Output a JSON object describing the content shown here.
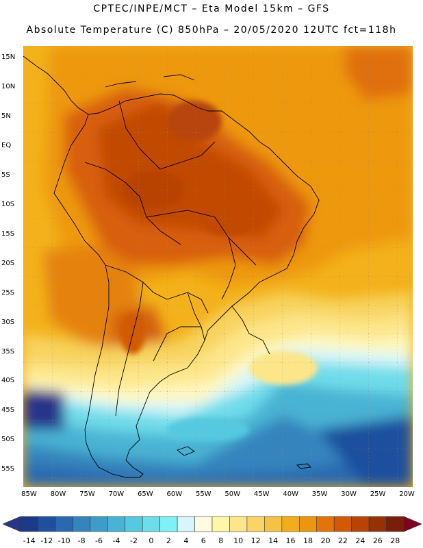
{
  "header": {
    "line1": "CPTEC/INPE/MCT –  Eta Model 15km – GFS",
    "line2": "Absolute Temperature (C) 850hPa – 20/05/2020 12UTC fct=118h"
  },
  "map": {
    "lon_range": [
      -86,
      -19
    ],
    "lat_range": [
      -58,
      17
    ],
    "lat_ticks": [
      {
        "value": 15,
        "label": "15N"
      },
      {
        "value": 10,
        "label": "10N"
      },
      {
        "value": 5,
        "label": "5N"
      },
      {
        "value": 0,
        "label": "EQ"
      },
      {
        "value": -5,
        "label": "5S"
      },
      {
        "value": -10,
        "label": "10S"
      },
      {
        "value": -15,
        "label": "15S"
      },
      {
        "value": -20,
        "label": "20S"
      },
      {
        "value": -25,
        "label": "25S"
      },
      {
        "value": -30,
        "label": "30S"
      },
      {
        "value": -35,
        "label": "35S"
      },
      {
        "value": -40,
        "label": "40S"
      },
      {
        "value": -45,
        "label": "45S"
      },
      {
        "value": -50,
        "label": "50S"
      },
      {
        "value": -55,
        "label": "55S"
      }
    ],
    "lon_ticks": [
      {
        "value": -85,
        "label": "85W"
      },
      {
        "value": -80,
        "label": "80W"
      },
      {
        "value": -75,
        "label": "75W"
      },
      {
        "value": -70,
        "label": "70W"
      },
      {
        "value": -65,
        "label": "65W"
      },
      {
        "value": -60,
        "label": "60W"
      },
      {
        "value": -55,
        "label": "55W"
      },
      {
        "value": -50,
        "label": "50W"
      },
      {
        "value": -45,
        "label": "45W"
      },
      {
        "value": -40,
        "label": "40W"
      },
      {
        "value": -35,
        "label": "35W"
      },
      {
        "value": -30,
        "label": "30W"
      },
      {
        "value": -25,
        "label": "25W"
      },
      {
        "value": -20,
        "label": "20W"
      }
    ]
  },
  "colorbar": {
    "labels": [
      "-14",
      "-12",
      "-10",
      "-8",
      "-6",
      "-4",
      "-2",
      "0",
      "2",
      "4",
      "6",
      "8",
      "10",
      "12",
      "14",
      "16",
      "18",
      "20",
      "22",
      "24",
      "26",
      "28"
    ],
    "colors": [
      "#1d3a8a",
      "#1f4f9e",
      "#2a69b0",
      "#3584bd",
      "#3f9cc8",
      "#48b3d4",
      "#55c9df",
      "#6fdcea",
      "#7ff0f5",
      "#d6f6fb",
      "#fffbe3",
      "#fff7a8",
      "#fde68a",
      "#fad565",
      "#f6c246",
      "#f1ad1c",
      "#ec950f",
      "#e3740a",
      "#d25a06",
      "#b84305",
      "#963005",
      "#7a1e0a"
    ],
    "under_color": "#27358a",
    "over_color": "#800020"
  }
}
